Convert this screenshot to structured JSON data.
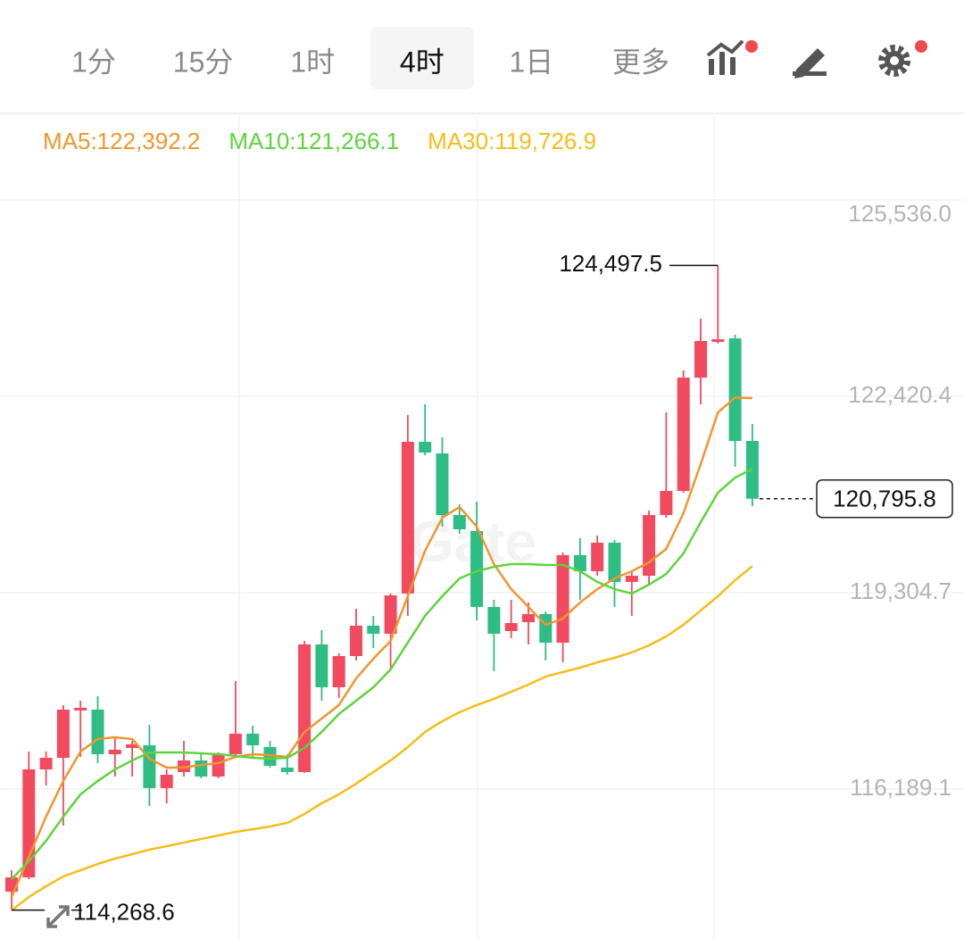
{
  "toolbar": {
    "tabs": [
      "1分",
      "15分",
      "1时",
      "4时",
      "1日",
      "更多"
    ],
    "selected": 3
  },
  "chart_data": {
    "type": "candlestick",
    "watermark": "Gate",
    "ylim": [
      113810,
      126867
    ],
    "yticks": [
      {
        "value": 125536.0,
        "label": "125,536.0"
      },
      {
        "value": 122420.4,
        "label": "122,420.4"
      },
      {
        "value": 119304.7,
        "label": "119,304.7"
      },
      {
        "value": 116189.1,
        "label": "116,189.1"
      }
    ],
    "grid": true,
    "up_color": "#f24a5f",
    "down_color": "#2ebd85",
    "open": [
      114561,
      114788,
      116501,
      116685,
      117436,
      117450,
      116742,
      116841,
      116883,
      116204,
      116459,
      116643,
      116388,
      116742,
      117068,
      116855,
      116529,
      116459,
      118484,
      117804,
      118299,
      118781,
      118653,
      119291,
      121698,
      121514,
      120537,
      120282,
      119078,
      118696,
      118838,
      118965,
      118512,
      119900,
      119645,
      120098,
      119475,
      119574,
      120537,
      120919,
      122717,
      123284,
      123340,
      121712
    ],
    "high": [
      114901,
      116784,
      116784,
      117521,
      117591,
      117662,
      117025,
      116954,
      117209,
      116501,
      116954,
      116742,
      116770,
      117903,
      117195,
      116954,
      116742,
      118540,
      118710,
      118342,
      119050,
      118937,
      119291,
      122123,
      122293,
      121769,
      120707,
      120749,
      119192,
      119192,
      119149,
      119007,
      119942,
      120169,
      120211,
      120140,
      119645,
      120608,
      122165,
      122831,
      123652,
      124497.5,
      123397,
      121981
    ],
    "low": [
      114268.6,
      114759,
      116246,
      115609,
      116699,
      116600,
      116388,
      116388,
      115921,
      115963,
      116388,
      116360,
      116360,
      116728,
      116671,
      116529,
      116416,
      116444,
      117591,
      117634,
      118229,
      118427,
      118087,
      118937,
      121485,
      120353,
      120239,
      118866,
      118059,
      118583,
      118484,
      118229,
      118200,
      119192,
      119574,
      119078,
      118937,
      119432,
      120494,
      120891,
      122293,
      123255,
      121301,
      120678
    ],
    "close": [
      114788,
      116501,
      116685,
      117450,
      117478,
      116742,
      116813,
      116898,
      116204,
      116416,
      116643,
      116388,
      116742,
      117068,
      116883,
      116558,
      116459,
      118484,
      117804,
      118299,
      118781,
      118653,
      119262,
      121698,
      121528,
      120537,
      120310,
      119078,
      118653,
      118823,
      118965,
      118512,
      119900,
      119645,
      120098,
      119475,
      119574,
      120537,
      120919,
      122717,
      123298,
      123326,
      121712,
      120795.8
    ],
    "series": [
      {
        "name": "MA5:122,392.2",
        "color": "#f0962e",
        "values": [
          114476,
          115113,
          115751,
          116317,
          116784,
          116983,
          117011,
          116983,
          116671,
          116529,
          116529,
          116572,
          116600,
          116699,
          116742,
          116728,
          116699,
          117096,
          117308,
          117521,
          117945,
          118257,
          118540,
          119248,
          119970,
          120494,
          120664,
          120353,
          119758,
          119361,
          119078,
          118795,
          118894,
          119149,
          119361,
          119531,
          119645,
          119786,
          119999,
          120565,
          121344,
          122165,
          122400,
          122392.2
        ]
      },
      {
        "name": "MA10:121,266.1",
        "color": "#5ed43c",
        "values": [
          114759,
          115043,
          115368,
          115751,
          116105,
          116317,
          116501,
          116643,
          116770,
          116770,
          116770,
          116756,
          116742,
          116714,
          116685,
          116671,
          116685,
          116841,
          117096,
          117379,
          117591,
          117804,
          118087,
          118512,
          118937,
          119248,
          119531,
          119645,
          119715,
          119758,
          119758,
          119744,
          119744,
          119645,
          119475,
          119361,
          119291,
          119432,
          119602,
          119928,
          120423,
          120891,
          121131,
          121266.1
        ]
      },
      {
        "name": "MA30:119,726.9",
        "color": "#f5bd16",
        "values": [
          114264,
          114476,
          114646,
          114802,
          114901,
          115000,
          115085,
          115156,
          115227,
          115283,
          115340,
          115397,
          115453,
          115510,
          115552,
          115595,
          115652,
          115793,
          115963,
          116105,
          116275,
          116459,
          116643,
          116855,
          117096,
          117266,
          117407,
          117521,
          117620,
          117733,
          117846,
          117974,
          118045,
          118115,
          118200,
          118271,
          118356,
          118469,
          118611,
          118795,
          119022,
          119248,
          119503,
          119726.9
        ]
      }
    ],
    "high_label": {
      "value": 124497.5,
      "label": "124,497.5"
    },
    "low_label": {
      "value": 114268.6,
      "label": "114,268.6"
    },
    "last_price": {
      "value": 120795.8,
      "label": "120,795.8"
    }
  }
}
